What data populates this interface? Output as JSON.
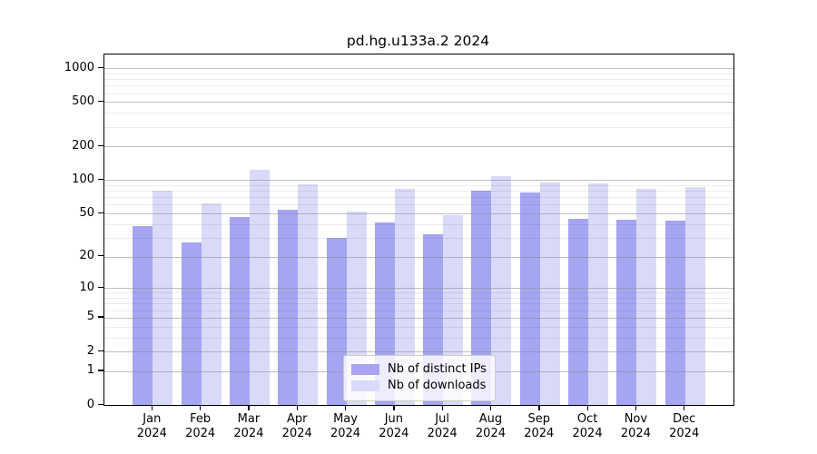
{
  "title": "pd.hg.u133a.2 2024",
  "chart_data": {
    "type": "bar",
    "title": "pd.hg.u133a.2 2024",
    "categories": [
      "Jan 2024",
      "Feb 2024",
      "Mar 2024",
      "Apr 2024",
      "May 2024",
      "Jun 2024",
      "Jul 2024",
      "Aug 2024",
      "Sep 2024",
      "Oct 2024",
      "Nov 2024",
      "Dec 2024"
    ],
    "month_labels": [
      "Jan",
      "Feb",
      "Mar",
      "Apr",
      "May",
      "Jun",
      "Jul",
      "Aug",
      "Sep",
      "Oct",
      "Nov",
      "Dec"
    ],
    "year_label": "2024",
    "series": [
      {
        "name": "Nb of distinct IPs",
        "color": "#a5a5f2",
        "values": [
          38,
          27,
          46,
          54,
          30,
          41,
          32,
          80,
          78,
          45,
          44,
          43
        ]
      },
      {
        "name": "Nb of downloads",
        "color": "#d9d9f8",
        "values": [
          80,
          62,
          125,
          92,
          52,
          84,
          48,
          108,
          95,
          93,
          84,
          86
        ]
      }
    ],
    "scale": "log1p",
    "ylim": [
      0,
      1330
    ],
    "y_major_ticks": [
      1000,
      500,
      200,
      100,
      50,
      20,
      10,
      5,
      2,
      1,
      0
    ],
    "y_minor_ticks": [
      3,
      4,
      6,
      7,
      8,
      9,
      30,
      40,
      60,
      70,
      80,
      90,
      300,
      400,
      600,
      700,
      800,
      900
    ],
    "grid": true,
    "legend_position": "lower-center-inside",
    "axis_color": "#000000",
    "grid_major_color": "#c4c4c4",
    "grid_minor_color": "#ededed"
  }
}
